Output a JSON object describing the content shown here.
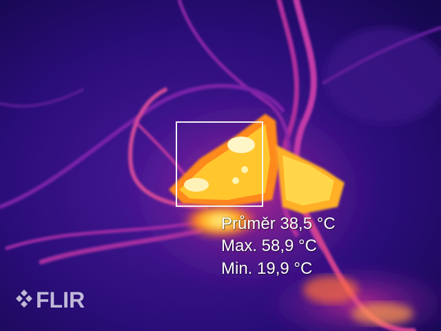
{
  "camera": {
    "brand_logo": "FLIR"
  },
  "measurements": {
    "average": "Průměr 38,5 °C",
    "max": "Max. 58,9 °C",
    "min": "Min. 19,9 °C"
  },
  "palette": {
    "background": "#1c0a5e",
    "cool": "#3b0f8a",
    "warm": "#b4238f",
    "hot": "#ff7a1a",
    "hottest": "#ffe97a"
  },
  "icons": {
    "logo": "flir-diamond-icon",
    "reticle": "measurement-box"
  }
}
